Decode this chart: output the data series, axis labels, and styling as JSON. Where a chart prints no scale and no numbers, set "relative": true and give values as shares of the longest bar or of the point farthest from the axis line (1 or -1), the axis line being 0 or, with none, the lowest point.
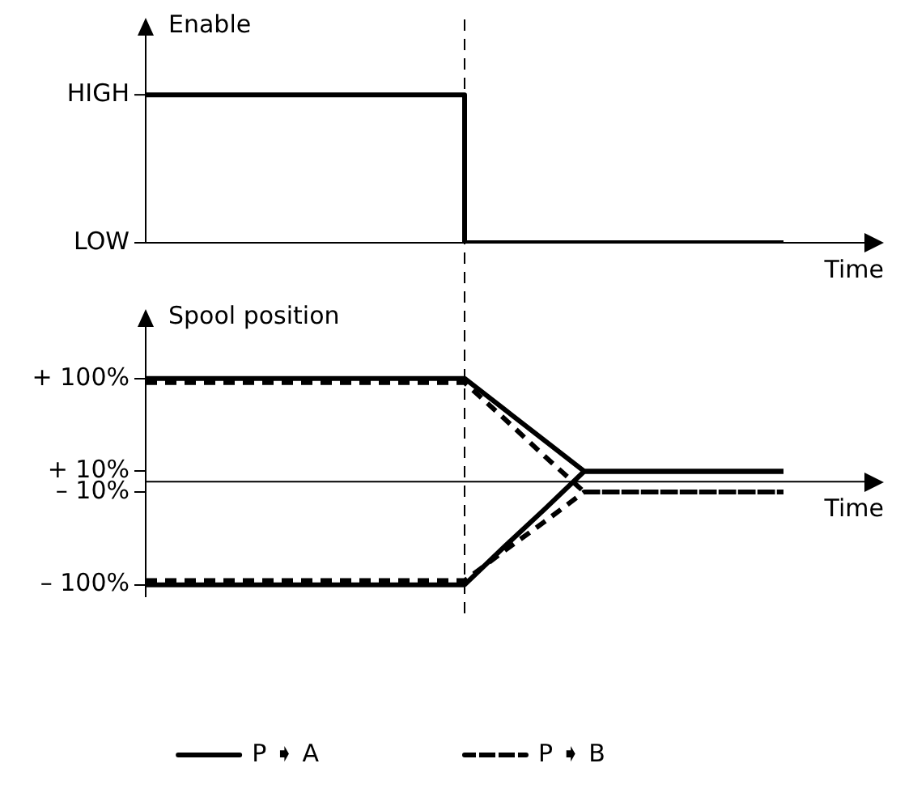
{
  "chart_data": [
    {
      "type": "step",
      "ylabel": "Enable",
      "xlabel": "Time",
      "categories": [
        null,
        null,
        null,
        null,
        null,
        null,
        null,
        null,
        null,
        null,
        null,
        null,
        null,
        null,
        null,
        null,
        null
      ],
      "series": [
        {
          "color": "#000000",
          "values": [
            1,
            1,
            1,
            1,
            1,
            1,
            1,
            1,
            1,
            0,
            0,
            0,
            0,
            0,
            0,
            0,
            0
          ]
        }
      ],
      "relative": true,
      "annotations": [
        "HIGH",
        "LOW"
      ],
      "tick_labels": false,
      "grid": false,
      "legend": false
    },
    {
      "type": "line",
      "ylabel": "Spool position",
      "xlabel": "Time",
      "categories": [
        null,
        null,
        null,
        null,
        null,
        null,
        null,
        null,
        null,
        null,
        null,
        null,
        null,
        null,
        null,
        null,
        null
      ],
      "series": [
        {
          "name": "P ➧ A",
          "color": "#000000",
          "line_style": "solid",
          "values": [
            100,
            100,
            100,
            100,
            100,
            100,
            100,
            100,
            100,
            70,
            40,
            10,
            10,
            10,
            10,
            10,
            10
          ]
        },
        {
          "color": "#000000",
          "line_style": "solid",
          "values": [
            -100,
            -100,
            -100,
            -100,
            -100,
            -100,
            -100,
            -100,
            -100,
            -63,
            -27,
            10,
            10,
            10,
            10,
            10,
            10
          ]
        },
        {
          "name": "P ➧ B",
          "color": "#000000",
          "line_style": "dashed",
          "values": [
            96,
            96,
            96,
            96,
            96,
            96,
            96,
            96,
            96,
            61,
            25,
            -10,
            -10,
            -10,
            -10,
            -10,
            -10
          ]
        },
        {
          "color": "#000000",
          "line_style": "dashed",
          "values": [
            -96,
            -96,
            -96,
            -96,
            -96,
            -96,
            -96,
            -96,
            -96,
            -67,
            -39,
            -10,
            -10,
            -10,
            -10,
            -10,
            -10
          ]
        }
      ],
      "ylim": [
        -112,
        150
      ],
      "yticks": [
        {
          "value": 100,
          "label": "+ 100%"
        },
        {
          "value": 10,
          "label": "+ 10%"
        },
        {
          "value": -10,
          "label": "– 10%"
        },
        {
          "value": -100,
          "label": "– 100%"
        }
      ],
      "tick_labels": "y",
      "grid": false,
      "legend": "bottom",
      "marker": "none"
    }
  ]
}
